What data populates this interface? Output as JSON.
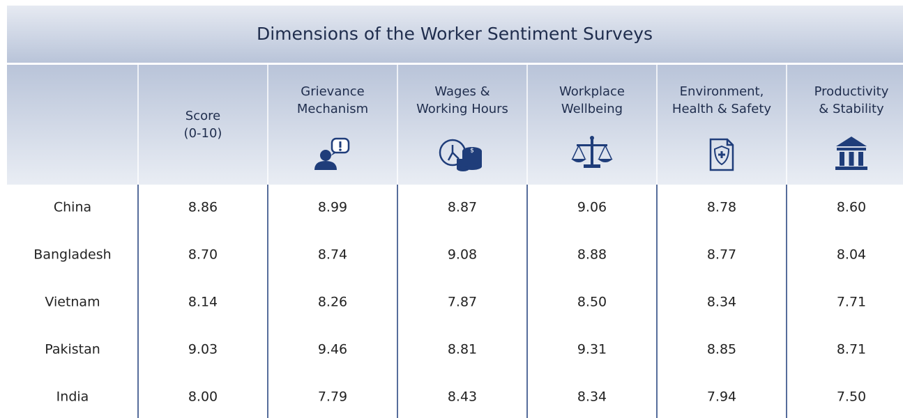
{
  "table": {
    "title": "Dimensions of the Worker Sentiment Surveys",
    "headers": [
      [],
      [
        "Score",
        "(0-10)"
      ],
      [
        "Grievance",
        "Mechanism"
      ],
      [
        "Wages &",
        "Working Hours"
      ],
      [
        "Workplace",
        "Wellbeing"
      ],
      [
        "Environment,",
        "Health & Safety"
      ],
      [
        "Productivity",
        "& Stability"
      ]
    ],
    "rows": [
      [
        "China",
        "8.86",
        "8.99",
        "8.87",
        "9.06",
        "8.78",
        "8.60"
      ],
      [
        "Bangladesh",
        "8.70",
        "8.74",
        "9.08",
        "8.88",
        "8.77",
        "8.04"
      ],
      [
        "Vietnam",
        "8.14",
        "8.26",
        "7.87",
        "8.50",
        "8.34",
        "7.71"
      ],
      [
        "Pakistan",
        "9.03",
        "9.46",
        "8.81",
        "9.31",
        "8.85",
        "8.71"
      ],
      [
        "India",
        "8.00",
        "7.79",
        "8.43",
        "8.34",
        "7.94",
        "7.50"
      ]
    ]
  }
}
